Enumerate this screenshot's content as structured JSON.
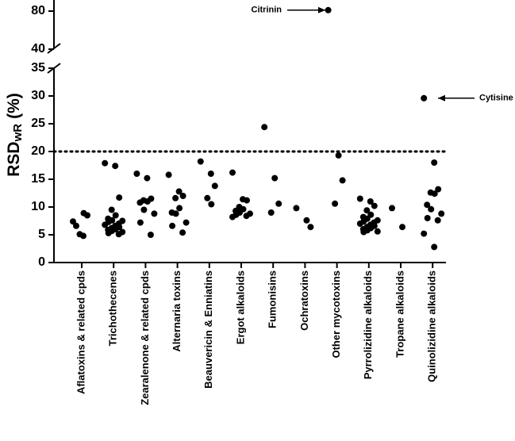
{
  "chart_data": {
    "type": "strip",
    "y_label": {
      "main": "RSD",
      "sub": "wR",
      "unit": "(%)"
    },
    "categories": [
      "Aflatoxins & related cpds",
      "Trichothecenes",
      "Zearalenone & related cpds",
      "Alternaria toxins",
      "Beauvericin & Enniatins",
      "Ergot alkaloids",
      "Fumonisins",
      "Ochratoxins",
      "Other mycotoxins",
      "Pyrrolizidine alkaloids",
      "Tropane alkaloids",
      "Quinolizidine alkaloids"
    ],
    "values": [
      [
        7.4,
        4.8,
        8.5,
        5.1,
        8.9,
        6.6
      ],
      [
        17.9,
        17.4,
        11.7,
        9.5,
        8.5,
        7.9,
        7.6,
        7.5,
        7.3,
        7.0,
        6.8,
        6.6,
        6.4,
        6.2,
        6.0,
        5.9,
        5.7,
        5.5,
        5.3,
        5.1
      ],
      [
        16.0,
        15.2,
        11.5,
        11.2,
        11.0,
        10.8,
        9.5,
        8.8,
        7.2,
        5.0
      ],
      [
        15.8,
        12.8,
        12.0,
        11.6,
        9.8,
        9.0,
        8.8,
        7.2,
        6.6,
        5.4
      ],
      [
        18.2,
        16.0,
        13.8,
        11.6,
        10.5
      ],
      [
        16.2,
        11.4,
        11.2,
        10.0,
        9.6,
        9.3,
        9.0,
        8.8,
        8.6,
        8.4,
        8.2
      ],
      [
        24.4,
        15.2,
        10.6,
        9.0
      ],
      [
        9.8,
        7.6,
        6.4
      ],
      [
        81,
        19.3,
        14.8,
        10.6
      ],
      [
        11.5,
        11.0,
        10.2,
        9.4,
        8.6,
        8.2,
        7.9,
        7.6,
        7.4,
        7.2,
        7.0,
        6.8,
        6.6,
        6.4,
        6.2,
        6.0,
        5.8,
        5.6,
        5.5
      ],
      [
        9.8,
        6.4
      ],
      [
        29.6,
        18.0,
        13.2,
        12.6,
        12.4,
        10.4,
        9.6,
        8.8,
        8.0,
        7.6,
        5.2,
        2.8
      ]
    ],
    "color": "#000000",
    "ylim": [
      0,
      35
    ],
    "yticks": [
      0,
      5,
      10,
      15,
      20,
      25,
      30,
      35
    ],
    "ylim_upper": [
      40,
      80
    ],
    "yticks_upper": [
      40,
      80
    ],
    "reference_line": 20,
    "annotations": [
      {
        "text": "Citrinin"
      },
      {
        "text": "Cytisine"
      }
    ]
  }
}
